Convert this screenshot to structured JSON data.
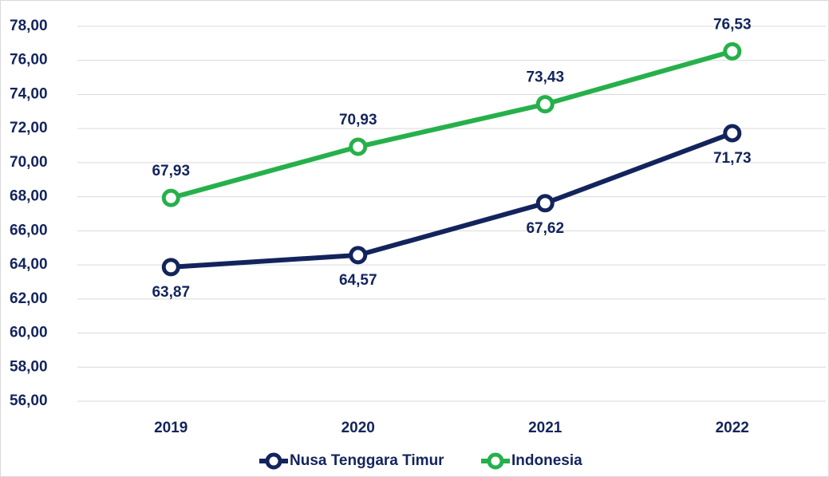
{
  "chart_data": {
    "type": "line",
    "categories": [
      "2019",
      "2020",
      "2021",
      "2022"
    ],
    "series": [
      {
        "name": "Nusa Tenggara Timur",
        "color": "#13245c",
        "values": [
          63.87,
          64.57,
          67.62,
          71.73
        ],
        "value_labels": [
          "63,87",
          "64,57",
          "67,62",
          "71,73"
        ]
      },
      {
        "name": "Indonesia",
        "color": "#26b04b",
        "values": [
          67.93,
          70.93,
          73.43,
          76.53
        ],
        "value_labels": [
          "67,93",
          "70,93",
          "73,43",
          "76,53"
        ]
      }
    ],
    "ylim": [
      56,
      78
    ],
    "yticks": [
      {
        "value": 56,
        "label": "56,00"
      },
      {
        "value": 58,
        "label": "58,00"
      },
      {
        "value": 60,
        "label": "60,00"
      },
      {
        "value": 62,
        "label": "62,00"
      },
      {
        "value": 64,
        "label": "64,00"
      },
      {
        "value": 66,
        "label": "66,00"
      },
      {
        "value": 68,
        "label": "68,00"
      },
      {
        "value": 70,
        "label": "70,00"
      },
      {
        "value": 72,
        "label": "72,00"
      },
      {
        "value": 74,
        "label": "74,00"
      },
      {
        "value": 76,
        "label": "76,00"
      },
      {
        "value": 78,
        "label": "78,00"
      }
    ],
    "grid": true,
    "legend": "bottom"
  }
}
